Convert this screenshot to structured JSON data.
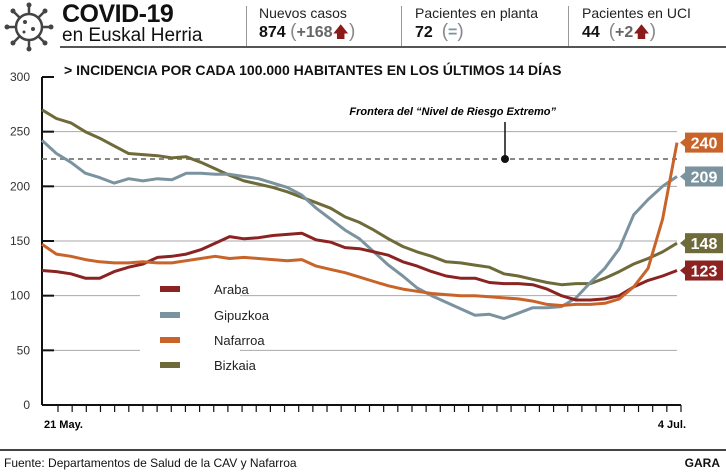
{
  "header": {
    "title": "COVID-19",
    "subtitle": "en Euskal Herria",
    "icon": "virus-icon",
    "stats": [
      {
        "label": "Nuevos casos",
        "value": "874",
        "delta": "+168",
        "trend": "up"
      },
      {
        "label": "Pacientes en planta",
        "value": "72",
        "delta": "=",
        "trend": "equal"
      },
      {
        "label": "Pacientes en UCI",
        "value": "44",
        "delta": "+2",
        "trend": "up"
      }
    ]
  },
  "chart_data": {
    "type": "line",
    "title": "> INCIDENCIA POR CADA 100.000 HABITANTES EN LOS ÚLTIMOS 14 DÍAS",
    "x_start_label": "21 May.",
    "x_end_label": "4 Jul.",
    "ylim": [
      0,
      300
    ],
    "y_ticks": [
      0,
      50,
      100,
      150,
      200,
      250,
      300
    ],
    "grid": true,
    "legend_placement": "center-left",
    "reference_line": {
      "value": 225,
      "label": "Frontera del “Nivel de Riesgo Extremo”"
    },
    "series": [
      {
        "name": "Araba",
        "color": "#8b2323",
        "end_label": "123",
        "values": [
          123,
          122,
          120,
          116,
          116,
          122,
          126,
          129,
          135,
          136,
          138,
          142,
          148,
          154,
          152,
          153,
          155,
          156,
          157,
          151,
          149,
          144,
          143,
          140,
          137,
          131,
          127,
          122,
          118,
          116,
          116,
          112,
          111,
          111,
          110,
          106,
          100,
          96,
          96,
          97,
          100,
          108,
          114,
          118,
          123
        ]
      },
      {
        "name": "Gipuzkoa",
        "color": "#7a939f",
        "end_label": "209",
        "values": [
          242,
          230,
          222,
          212,
          208,
          203,
          207,
          205,
          207,
          206,
          212,
          212,
          211,
          211,
          209,
          207,
          203,
          199,
          192,
          180,
          170,
          160,
          152,
          140,
          128,
          118,
          107,
          100,
          94,
          88,
          82,
          83,
          79,
          84,
          89,
          89,
          90,
          98,
          112,
          125,
          143,
          174,
          188,
          200,
          209
        ]
      },
      {
        "name": "Nafarroa",
        "color": "#c8642a",
        "end_label": "240",
        "values": [
          147,
          138,
          136,
          133,
          131,
          130,
          130,
          131,
          130,
          130,
          132,
          134,
          136,
          134,
          135,
          134,
          133,
          132,
          133,
          127,
          124,
          121,
          117,
          113,
          109,
          106,
          104,
          102,
          101,
          100,
          100,
          99,
          98,
          97,
          95,
          92,
          91,
          92,
          92,
          93,
          97,
          108,
          125,
          170,
          240
        ]
      },
      {
        "name": "Bizkaia",
        "color": "#6e6a3a",
        "end_label": "148",
        "values": [
          270,
          262,
          258,
          250,
          244,
          237,
          230,
          229,
          228,
          226,
          227,
          222,
          216,
          210,
          205,
          202,
          199,
          195,
          190,
          185,
          180,
          172,
          167,
          160,
          152,
          145,
          140,
          136,
          131,
          130,
          128,
          126,
          120,
          118,
          115,
          112,
          110,
          111,
          111,
          116,
          122,
          129,
          134,
          140,
          148
        ]
      }
    ]
  },
  "footer": {
    "source": "Fuente: Departamentos de Salud de la CAV y Nafarroa",
    "brand": "GARA"
  }
}
